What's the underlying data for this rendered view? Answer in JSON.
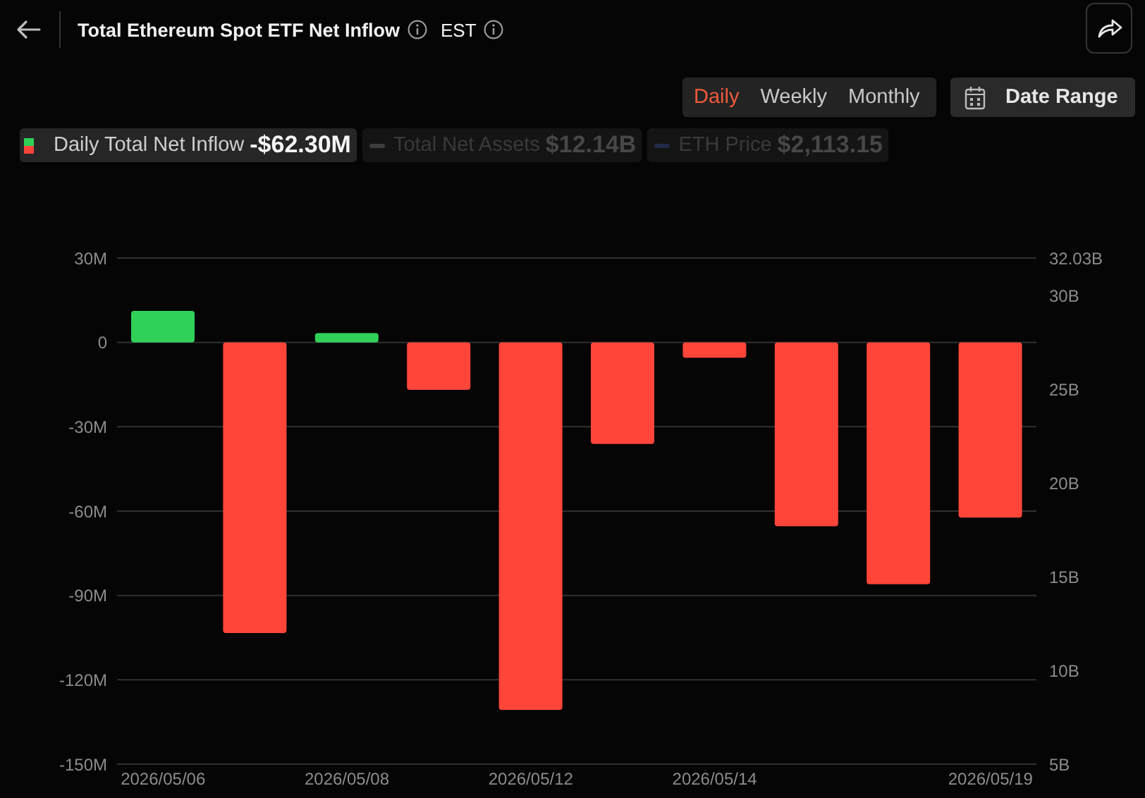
{
  "chart_data": {
    "type": "bar",
    "title": "Total Ethereum Spot ETF Net Inflow",
    "categories": [
      "2026/05/06",
      null,
      "2026/05/08",
      null,
      "2026/05/12",
      null,
      "2026/05/14",
      null,
      null,
      "2026/05/19"
    ],
    "series": [
      {
        "name": "Daily Total Net Inflow",
        "colors": [
          "#30d158",
          "#ff453a",
          "#30d158",
          "#ff453a",
          "#ff453a",
          "#ff453a",
          "#ff453a",
          "#ff453a",
          "#ff453a",
          "#ff453a"
        ],
        "values": [
          11.2,
          -103.4,
          3.3,
          -16.9,
          -130.7,
          -36.1,
          -5.5,
          -65.4,
          -86.0,
          -62.3
        ]
      }
    ],
    "ylim": [
      -150,
      30
    ],
    "yticks": [
      {
        "value": -150,
        "label": "-150M"
      },
      {
        "value": -120,
        "label": "-120M"
      },
      {
        "value": -90,
        "label": "-90M"
      },
      {
        "value": -60,
        "label": "-60M"
      },
      {
        "value": -30,
        "label": "-30M"
      },
      0,
      {
        "value": 30,
        "label": "30M"
      }
    ],
    "y2lim": [
      5,
      32.03
    ],
    "y2ticks": [
      {
        "value": 5,
        "label": "5B"
      },
      {
        "value": 10,
        "label": "10B"
      },
      {
        "value": 15,
        "label": "15B"
      },
      {
        "value": 20,
        "label": "20B"
      },
      {
        "value": 25,
        "label": "25B"
      },
      {
        "value": 30,
        "label": "30B"
      },
      {
        "value": 32.03,
        "label": "32.03B"
      }
    ],
    "grid": "y",
    "legend": "top left",
    "annotations": [
      "EST",
      "Daily",
      "Weekly",
      "Monthly",
      "Date Range",
      "-$62.30M",
      "Total Net Assets",
      "$12.14B",
      "ETH Price",
      "$2,113.15"
    ]
  }
}
